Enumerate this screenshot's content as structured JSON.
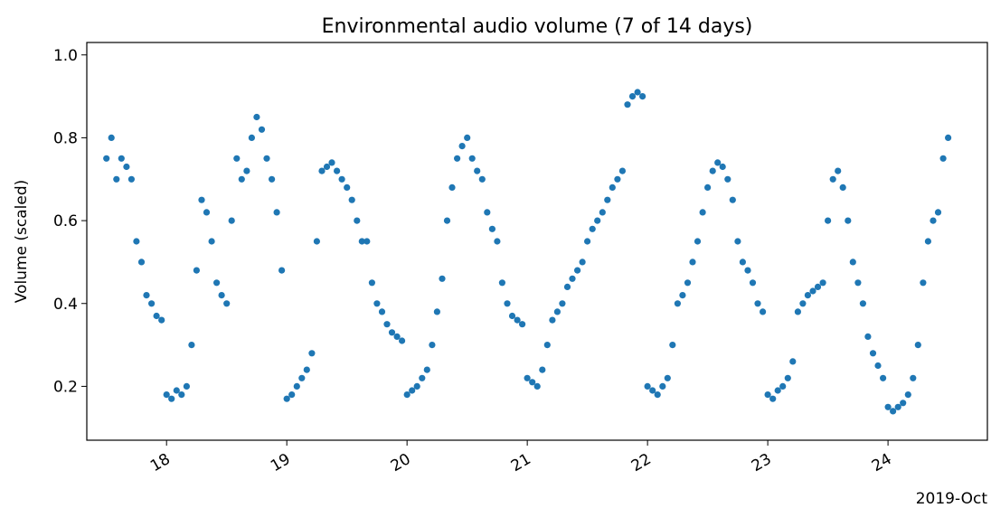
{
  "chart_data": {
    "type": "scatter",
    "title": "Environmental audio volume (7 of 14 days)",
    "xlabel": "",
    "ylabel": "Volume (scaled)",
    "x_axis_type": "date",
    "x_offset_label": "2019-Oct",
    "xlim": [
      "2019-10-17T08:05",
      "2019-10-24T19:50"
    ],
    "ylim": [
      0.07,
      1.03
    ],
    "x_ticks": [
      {
        "date": "2019-10-18",
        "label": "18"
      },
      {
        "date": "2019-10-19",
        "label": "19"
      },
      {
        "date": "2019-10-20",
        "label": "20"
      },
      {
        "date": "2019-10-21",
        "label": "21"
      },
      {
        "date": "2019-10-22",
        "label": "22"
      },
      {
        "date": "2019-10-23",
        "label": "23"
      },
      {
        "date": "2019-10-24",
        "label": "24"
      }
    ],
    "y_ticks": [
      0.2,
      0.4,
      0.6,
      0.8,
      1.0
    ],
    "y_tick_labels": [
      "0.2",
      "0.4",
      "0.6",
      "0.8",
      "1.0"
    ],
    "tick_label_rotation_deg": 30,
    "grid": false,
    "legend": "none",
    "marker_color": "#1f77b4",
    "series": [
      {
        "x": [
          "2019-10-17T12:00",
          "2019-10-17T13:00",
          "2019-10-17T14:00",
          "2019-10-17T15:00",
          "2019-10-17T16:00",
          "2019-10-17T17:00",
          "2019-10-17T18:00",
          "2019-10-17T19:00",
          "2019-10-17T20:00",
          "2019-10-17T21:00",
          "2019-10-17T22:00",
          "2019-10-17T23:00",
          "2019-10-18T00:00",
          "2019-10-18T01:00",
          "2019-10-18T02:00",
          "2019-10-18T03:00",
          "2019-10-18T04:00",
          "2019-10-18T05:00",
          "2019-10-18T06:00",
          "2019-10-18T07:00",
          "2019-10-18T08:00",
          "2019-10-18T09:00",
          "2019-10-18T10:00",
          "2019-10-18T11:00",
          "2019-10-18T12:00",
          "2019-10-18T13:00",
          "2019-10-18T14:00",
          "2019-10-18T15:00",
          "2019-10-18T16:00",
          "2019-10-18T17:00",
          "2019-10-18T18:00",
          "2019-10-18T19:00",
          "2019-10-18T20:00",
          "2019-10-18T21:00",
          "2019-10-18T22:00",
          "2019-10-18T23:00",
          "2019-10-19T00:00",
          "2019-10-19T01:00",
          "2019-10-19T02:00",
          "2019-10-19T03:00",
          "2019-10-19T04:00",
          "2019-10-19T05:00",
          "2019-10-19T06:00",
          "2019-10-19T07:00",
          "2019-10-19T08:00",
          "2019-10-19T09:00",
          "2019-10-19T10:00",
          "2019-10-19T11:00",
          "2019-10-19T12:00",
          "2019-10-19T13:00",
          "2019-10-19T14:00",
          "2019-10-19T15:00",
          "2019-10-19T16:00",
          "2019-10-19T17:00",
          "2019-10-19T18:00",
          "2019-10-19T19:00",
          "2019-10-19T20:00",
          "2019-10-19T21:00",
          "2019-10-19T22:00",
          "2019-10-19T23:00",
          "2019-10-20T00:00",
          "2019-10-20T01:00",
          "2019-10-20T02:00",
          "2019-10-20T03:00",
          "2019-10-20T04:00",
          "2019-10-20T05:00",
          "2019-10-20T06:00",
          "2019-10-20T07:00",
          "2019-10-20T08:00",
          "2019-10-20T09:00",
          "2019-10-20T10:00",
          "2019-10-20T11:00",
          "2019-10-20T12:00",
          "2019-10-20T13:00",
          "2019-10-20T14:00",
          "2019-10-20T15:00",
          "2019-10-20T16:00",
          "2019-10-20T17:00",
          "2019-10-20T18:00",
          "2019-10-20T19:00",
          "2019-10-20T20:00",
          "2019-10-20T21:00",
          "2019-10-20T22:00",
          "2019-10-20T23:00",
          "2019-10-21T00:00",
          "2019-10-21T01:00",
          "2019-10-21T02:00",
          "2019-10-21T03:00",
          "2019-10-21T04:00",
          "2019-10-21T05:00",
          "2019-10-21T06:00",
          "2019-10-21T07:00",
          "2019-10-21T08:00",
          "2019-10-21T09:00",
          "2019-10-21T10:00",
          "2019-10-21T11:00",
          "2019-10-21T12:00",
          "2019-10-21T13:00",
          "2019-10-21T14:00",
          "2019-10-21T15:00",
          "2019-10-21T16:00",
          "2019-10-21T17:00",
          "2019-10-21T18:00",
          "2019-10-21T19:00",
          "2019-10-21T20:00",
          "2019-10-21T21:00",
          "2019-10-21T22:00",
          "2019-10-21T23:00",
          "2019-10-22T00:00",
          "2019-10-22T01:00",
          "2019-10-22T02:00",
          "2019-10-22T03:00",
          "2019-10-22T04:00",
          "2019-10-22T05:00",
          "2019-10-22T06:00",
          "2019-10-22T07:00",
          "2019-10-22T08:00",
          "2019-10-22T09:00",
          "2019-10-22T10:00",
          "2019-10-22T11:00",
          "2019-10-22T12:00",
          "2019-10-22T13:00",
          "2019-10-22T14:00",
          "2019-10-22T15:00",
          "2019-10-22T16:00",
          "2019-10-22T17:00",
          "2019-10-22T18:00",
          "2019-10-22T19:00",
          "2019-10-22T20:00",
          "2019-10-22T21:00",
          "2019-10-22T22:00",
          "2019-10-22T23:00",
          "2019-10-23T00:00",
          "2019-10-23T01:00",
          "2019-10-23T02:00",
          "2019-10-23T03:00",
          "2019-10-23T04:00",
          "2019-10-23T05:00",
          "2019-10-23T06:00",
          "2019-10-23T07:00",
          "2019-10-23T08:00",
          "2019-10-23T09:00",
          "2019-10-23T10:00",
          "2019-10-23T11:00",
          "2019-10-23T12:00",
          "2019-10-23T13:00",
          "2019-10-23T14:00",
          "2019-10-23T15:00",
          "2019-10-23T16:00",
          "2019-10-23T17:00",
          "2019-10-23T18:00",
          "2019-10-23T19:00",
          "2019-10-23T20:00",
          "2019-10-23T21:00",
          "2019-10-23T22:00",
          "2019-10-23T23:00",
          "2019-10-24T00:00",
          "2019-10-24T01:00",
          "2019-10-24T02:00",
          "2019-10-24T03:00",
          "2019-10-24T04:00",
          "2019-10-24T05:00",
          "2019-10-24T06:00",
          "2019-10-24T07:00",
          "2019-10-24T08:00",
          "2019-10-24T09:00",
          "2019-10-24T10:00",
          "2019-10-24T11:00",
          "2019-10-24T12:00"
        ],
        "y": [
          0.75,
          0.8,
          0.7,
          0.75,
          0.73,
          0.7,
          0.55,
          0.5,
          0.42,
          0.4,
          0.37,
          0.36,
          0.18,
          0.17,
          0.19,
          0.18,
          0.2,
          0.3,
          0.48,
          0.65,
          0.62,
          0.55,
          0.45,
          0.42,
          0.4,
          0.6,
          0.75,
          0.7,
          0.72,
          0.8,
          0.85,
          0.82,
          0.75,
          0.7,
          0.62,
          0.48,
          0.17,
          0.18,
          0.2,
          0.22,
          0.24,
          0.28,
          0.55,
          0.72,
          0.73,
          0.74,
          0.72,
          0.7,
          0.68,
          0.65,
          0.6,
          0.55,
          0.55,
          0.45,
          0.4,
          0.38,
          0.35,
          0.33,
          0.32,
          0.31,
          0.18,
          0.19,
          0.2,
          0.22,
          0.24,
          0.3,
          0.38,
          0.46,
          0.6,
          0.68,
          0.75,
          0.78,
          0.8,
          0.75,
          0.72,
          0.7,
          0.62,
          0.58,
          0.55,
          0.45,
          0.4,
          0.37,
          0.36,
          0.35,
          0.22,
          0.21,
          0.2,
          0.24,
          0.3,
          0.36,
          0.38,
          0.4,
          0.44,
          0.46,
          0.48,
          0.5,
          0.55,
          0.58,
          0.6,
          0.62,
          0.65,
          0.68,
          0.7,
          0.72,
          0.88,
          0.9,
          0.91,
          0.9,
          0.2,
          0.19,
          0.18,
          0.2,
          0.22,
          0.3,
          0.4,
          0.42,
          0.45,
          0.5,
          0.55,
          0.62,
          0.68,
          0.72,
          0.74,
          0.73,
          0.7,
          0.65,
          0.55,
          0.5,
          0.48,
          0.45,
          0.4,
          0.38,
          0.18,
          0.17,
          0.19,
          0.2,
          0.22,
          0.26,
          0.38,
          0.4,
          0.42,
          0.43,
          0.44,
          0.45,
          0.6,
          0.7,
          0.72,
          0.68,
          0.6,
          0.5,
          0.45,
          0.4,
          0.32,
          0.28,
          0.25,
          0.22,
          0.15,
          0.14,
          0.15,
          0.16,
          0.18,
          0.22,
          0.3,
          0.45,
          0.55,
          0.6,
          0.62,
          0.75,
          0.8
        ]
      }
    ]
  }
}
